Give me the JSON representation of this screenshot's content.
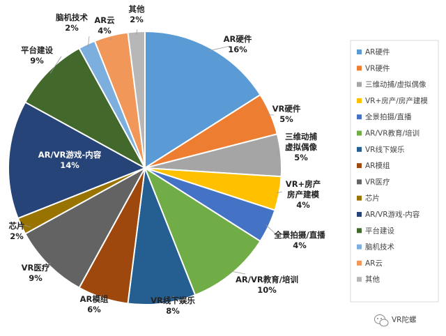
{
  "chart_data": {
    "type": "pie",
    "title": "",
    "slices": [
      {
        "label": "AR硬件",
        "value": 16,
        "pct_text": "16%",
        "color": "#5b9bd5"
      },
      {
        "label": "VR硬件",
        "value": 5,
        "pct_text": "5%",
        "color": "#ed7d31"
      },
      {
        "label": "三维动捕/虚拟偶像",
        "value": 5,
        "pct_text": "5%",
        "color": "#a5a5a5"
      },
      {
        "label": "VR+房产/房产建模",
        "value": 4,
        "pct_text": "4%",
        "color": "#ffc000"
      },
      {
        "label": "全景拍摄/直播",
        "value": 4,
        "pct_text": "4%",
        "color": "#4472c4"
      },
      {
        "label": "AR/VR教育/培训",
        "value": 10,
        "pct_text": "10%",
        "color": "#70ad47"
      },
      {
        "label": "VR线下娱乐",
        "value": 8,
        "pct_text": "8%",
        "color": "#255e91"
      },
      {
        "label": "AR模组",
        "value": 6,
        "pct_text": "6%",
        "color": "#9e480e"
      },
      {
        "label": "VR医疗",
        "value": 9,
        "pct_text": "9%",
        "color": "#636363"
      },
      {
        "label": "芯片",
        "value": 2,
        "pct_text": "2%",
        "color": "#997300"
      },
      {
        "label": "AR/VR游戏-内容",
        "value": 14,
        "pct_text": "14%",
        "color": "#264478"
      },
      {
        "label": "平台建设",
        "value": 9,
        "pct_text": "9%",
        "color": "#43682b"
      },
      {
        "label": "脑机技术",
        "value": 2,
        "pct_text": "2%",
        "color": "#7cafdd"
      },
      {
        "label": "AR云",
        "value": 4,
        "pct_text": "4%",
        "color": "#f1975a"
      },
      {
        "label": "其他",
        "value": 2,
        "pct_text": "2%",
        "color": "#b7b7b7"
      }
    ],
    "legend_position": "right",
    "slice_labels": [
      {
        "lines": [
          "AR硬件",
          "16%"
        ]
      },
      {
        "lines": [
          "VR硬件",
          "5%"
        ]
      },
      {
        "lines": [
          "三维动捕",
          "虚拟偶像",
          "5%"
        ]
      },
      {
        "lines": [
          "VR+房产",
          "房产建模",
          "4%"
        ]
      },
      {
        "lines": [
          "全景拍摄/直播",
          "4%"
        ]
      },
      {
        "lines": [
          "AR/VR教育/培训",
          "10%"
        ]
      },
      {
        "lines": [
          "VR线下娱乐",
          "8%"
        ]
      },
      {
        "lines": [
          "AR模组",
          "6%"
        ]
      },
      {
        "lines": [
          "VR医疗",
          "9%"
        ]
      },
      {
        "lines": [
          "芯片",
          "2%"
        ]
      },
      {
        "lines": [
          "AR/VR游戏-内容",
          "14%"
        ]
      },
      {
        "lines": [
          "平台建设",
          "9%"
        ]
      },
      {
        "lines": [
          "脑机技术",
          "2%"
        ]
      },
      {
        "lines": [
          "AR云",
          "4%"
        ]
      },
      {
        "lines": [
          "其他",
          "2%"
        ]
      }
    ]
  },
  "watermark": {
    "text": "VR陀螺",
    "icon": "wechat-icon"
  }
}
